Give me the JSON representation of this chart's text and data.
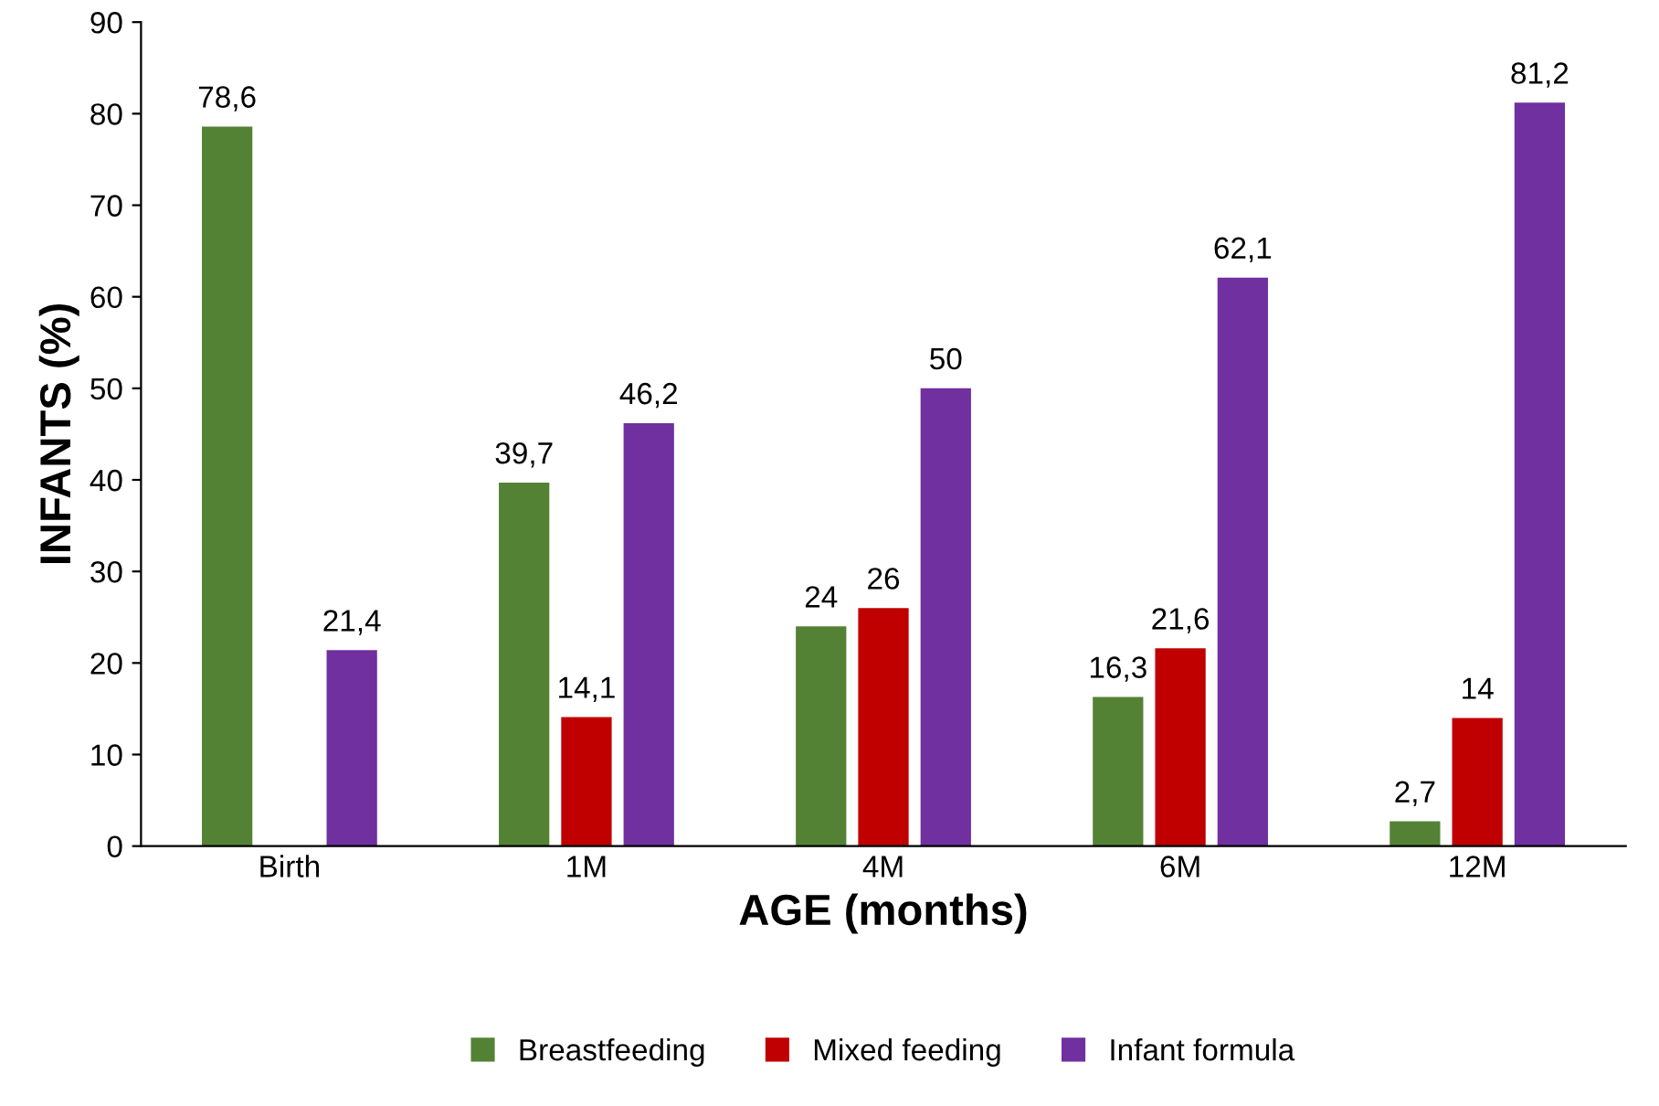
{
  "chart_data": {
    "type": "bar",
    "xlabel": "AGE (months)",
    "ylabel": "INFANTS (%)",
    "categories": [
      "Birth",
      "1M",
      "4M",
      "6M",
      "12M"
    ],
    "series": [
      {
        "name": "Breastfeeding",
        "color": "#548235",
        "values": [
          78.6,
          39.7,
          24,
          16.3,
          2.7
        ],
        "value_labels": [
          "78,6",
          "39,7",
          "24",
          "16,3",
          "2,7"
        ]
      },
      {
        "name": "Mixed feeding",
        "color": "#c00000",
        "values": [
          null,
          14.1,
          26,
          21.6,
          14
        ],
        "value_labels": [
          null,
          "14,1",
          "26",
          "21,6",
          "14"
        ]
      },
      {
        "name": "Infant formula",
        "color": "#7030a0",
        "values": [
          21.4,
          46.2,
          50,
          62.1,
          81.2
        ],
        "value_labels": [
          "21,4",
          "46,2",
          "50",
          "62,1",
          "81,2"
        ]
      }
    ],
    "ylim": [
      0,
      90
    ],
    "yticks": [
      0,
      10,
      20,
      30,
      40,
      50,
      60,
      70,
      80,
      90
    ],
    "grid": false,
    "legend": "bottom"
  }
}
